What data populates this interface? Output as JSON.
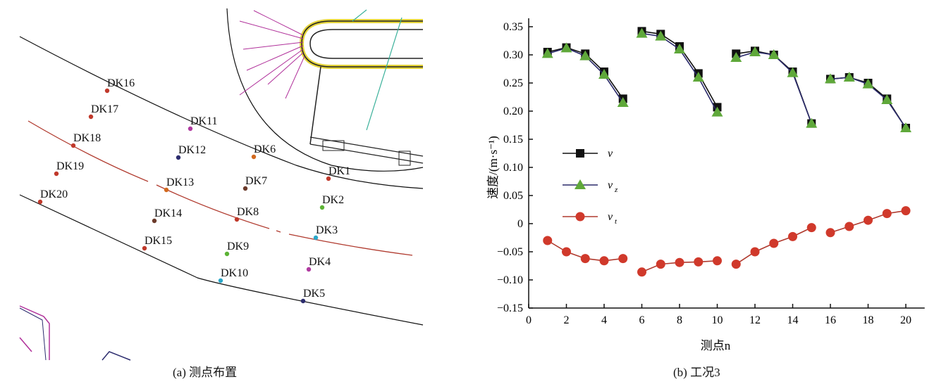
{
  "panel_a": {
    "caption": "(a) 测点布置",
    "points": [
      {
        "label": "DK1",
        "color": "#c0392b"
      },
      {
        "label": "DK2",
        "color": "#5cb335"
      },
      {
        "label": "DK3",
        "color": "#2aa7c9"
      },
      {
        "label": "DK4",
        "color": "#b03aa0"
      },
      {
        "label": "DK5",
        "color": "#2c2c6e"
      },
      {
        "label": "DK6",
        "color": "#d2691e"
      },
      {
        "label": "DK7",
        "color": "#6b3a2a"
      },
      {
        "label": "DK8",
        "color": "#c0392b"
      },
      {
        "label": "DK9",
        "color": "#5cb335"
      },
      {
        "label": "DK10",
        "color": "#2aa7c9"
      },
      {
        "label": "DK11",
        "color": "#b03aa0"
      },
      {
        "label": "DK12",
        "color": "#2c2c6e"
      },
      {
        "label": "DK13",
        "color": "#d2691e"
      },
      {
        "label": "DK14",
        "color": "#6b3a2a"
      },
      {
        "label": "DK15",
        "color": "#c0392b"
      },
      {
        "label": "DK16",
        "color": "#c0392b"
      },
      {
        "label": "DK17",
        "color": "#c0392b"
      },
      {
        "label": "DK18",
        "color": "#c0392b"
      },
      {
        "label": "DK19",
        "color": "#c0392b"
      },
      {
        "label": "DK20",
        "color": "#c0392b"
      }
    ]
  },
  "chart_data": {
    "type": "line",
    "caption": "(b) 工况3",
    "xlabel": "测点n",
    "ylabel": "速度/(m·s⁻¹)",
    "xlim": [
      0,
      21
    ],
    "ylim": [
      -0.15,
      0.35
    ],
    "xticks": [
      0,
      2,
      4,
      6,
      8,
      10,
      12,
      14,
      16,
      18,
      20
    ],
    "yticks": [
      0.35,
      0.3,
      0.25,
      0.2,
      0.15,
      0.1,
      0.05,
      0,
      -0.05,
      -0.1,
      -0.15
    ],
    "ytick_labels": [
      "0.35",
      "0.30",
      "0.25",
      "0.20",
      "0.15",
      "0.10",
      "0.05",
      "0",
      "−0.05",
      "−0.10",
      "−0.15"
    ],
    "segments": [
      [
        1,
        5
      ],
      [
        6,
        10
      ],
      [
        11,
        15
      ],
      [
        16,
        20
      ]
    ],
    "legend_position": "left-middle",
    "series": [
      {
        "name": "v",
        "sub": "",
        "color": "#000000",
        "marker": "square",
        "line": "#111111",
        "values": [
          0.305,
          0.313,
          0.302,
          0.27,
          0.222,
          0.342,
          0.337,
          0.315,
          0.267,
          0.207,
          0.302,
          0.307,
          0.3,
          0.27,
          0.178,
          0.257,
          0.26,
          0.25,
          0.222,
          0.17
        ]
      },
      {
        "name": "v",
        "sub": "z",
        "color": "#5fa83a",
        "marker": "triangle",
        "line": "#2a2a6a",
        "values": [
          0.302,
          0.312,
          0.298,
          0.265,
          0.215,
          0.338,
          0.333,
          0.31,
          0.26,
          0.198,
          0.295,
          0.305,
          0.3,
          0.268,
          0.178,
          0.257,
          0.26,
          0.248,
          0.22,
          0.17
        ]
      },
      {
        "name": "v",
        "sub": "t",
        "color": "#d0392b",
        "marker": "circle",
        "line": "#b03a2e",
        "values": [
          -0.03,
          -0.05,
          -0.062,
          -0.066,
          -0.062,
          -0.086,
          -0.072,
          -0.069,
          -0.068,
          -0.066,
          -0.072,
          -0.05,
          -0.035,
          -0.023,
          -0.007,
          -0.016,
          -0.005,
          0.006,
          0.018,
          0.023
        ]
      }
    ]
  }
}
